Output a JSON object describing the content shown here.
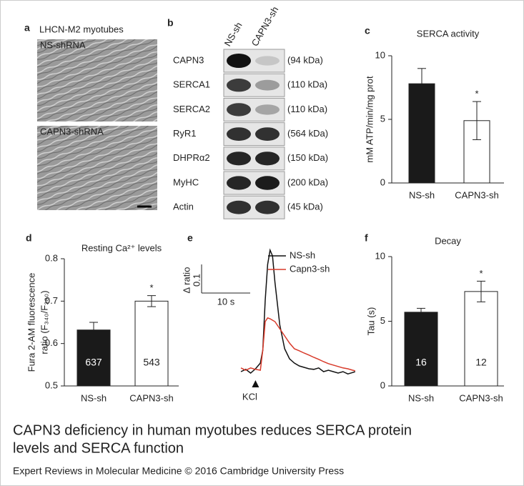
{
  "panel_a": {
    "label": "a",
    "title": "LHCN-M2 myotubes",
    "images": [
      "NS-shRNA",
      "CAPN3-shRNA"
    ]
  },
  "panel_b": {
    "label": "b",
    "lanes": [
      "NS-sh",
      "CAPN3-sh"
    ],
    "rows": [
      {
        "protein": "CAPN3",
        "size": "(94 kDa)"
      },
      {
        "protein": "SERCA1",
        "size": "(110 kDa)"
      },
      {
        "protein": "SERCA2",
        "size": "(110 kDa)"
      },
      {
        "protein": "RyR1",
        "size": "(564 kDa)"
      },
      {
        "protein": "DHPRα2",
        "size": "(150 kDa)"
      },
      {
        "protein": "MyHC",
        "size": "(200 kDa)"
      },
      {
        "protein": "Actin",
        "size": "(45 kDa)"
      }
    ]
  },
  "chart_data": [
    {
      "type": "bar",
      "label": "c",
      "title": "SERCA activity",
      "y_label": [
        "mM ATP/min/mg prot"
      ],
      "categories": [
        "NS-sh",
        "CAPN3-sh"
      ],
      "values": [
        7.8,
        4.9
      ],
      "errors": [
        1.2,
        1.5
      ],
      "colors": [
        "#1a1a1a",
        "#ffffff"
      ],
      "significance": [
        null,
        "*"
      ],
      "ylim": [
        0,
        10
      ],
      "yticks": [
        0,
        5,
        10
      ]
    },
    {
      "type": "bar",
      "label": "d",
      "title": "Resting Ca²⁺ levels",
      "y_label": [
        "Fura 2-AM fluorescence",
        "ratio (F₃₄₀/F₃₈₀)"
      ],
      "categories": [
        "NS-sh",
        "CAPN3-sh"
      ],
      "values": [
        0.632,
        0.7
      ],
      "errors": [
        0.018,
        0.013
      ],
      "n_labels": [
        "637",
        "543"
      ],
      "colors": [
        "#1a1a1a",
        "#ffffff"
      ],
      "significance": [
        null,
        "*"
      ],
      "ylim": [
        0.5,
        0.8
      ],
      "yticks": [
        0.5,
        0.6,
        0.7,
        0.8
      ]
    },
    {
      "type": "line",
      "label": "e",
      "x": [
        0,
        1,
        2,
        3,
        4,
        4.5,
        5,
        5.5,
        6,
        6.5,
        7,
        8,
        9,
        10,
        11,
        12,
        13,
        14,
        15,
        16,
        17,
        18,
        19,
        20,
        21,
        22,
        23,
        23.5
      ],
      "series": [
        {
          "name": "NS-sh",
          "color": "#111111",
          "values": [
            0,
            0.008,
            -0.005,
            0.01,
            0.03,
            0.075,
            0.25,
            0.375,
            0.425,
            0.405,
            0.313,
            0.163,
            0.08,
            0.045,
            0.03,
            0.02,
            0.015,
            0.01,
            0.008,
            0.013,
            0,
            0.005,
            0,
            -0.005,
            0,
            -0.008,
            -0.003,
            0
          ]
        },
        {
          "name": "Capn3-sh",
          "color": "#d83a2a",
          "values": [
            0.013,
            0.005,
            0.013,
            0.008,
            0.005,
            0.075,
            0.175,
            0.188,
            0.185,
            0.18,
            0.175,
            0.15,
            0.125,
            0.1,
            0.08,
            0.073,
            0.065,
            0.058,
            0.05,
            0.043,
            0.035,
            0.028,
            0.023,
            0.018,
            0.013,
            0.01,
            0.005,
            0.003
          ]
        }
      ],
      "scale_bar": {
        "y_title": "Δ ratio",
        "y": 0.1,
        "x": 10,
        "x_label": "10 s"
      },
      "stimulus": {
        "label": "KCl",
        "x": 3
      }
    },
    {
      "type": "bar",
      "label": "f",
      "title": "Decay",
      "y_label": [
        "Tau (s)"
      ],
      "categories": [
        "NS-sh",
        "CAPN3-sh"
      ],
      "values": [
        5.7,
        7.3
      ],
      "errors": [
        0.3,
        0.8
      ],
      "n_labels": [
        "16",
        "12"
      ],
      "colors": [
        "#1a1a1a",
        "#ffffff"
      ],
      "significance": [
        null,
        "*"
      ],
      "ylim": [
        0,
        10
      ],
      "yticks": [
        0,
        5,
        10
      ]
    }
  ],
  "caption": [
    "CAPN3 deficiency in human myotubes reduces SERCA protein",
    "levels and SERCA function"
  ],
  "credit": "Expert Reviews in Molecular Medicine © 2016 Cambridge University Press"
}
